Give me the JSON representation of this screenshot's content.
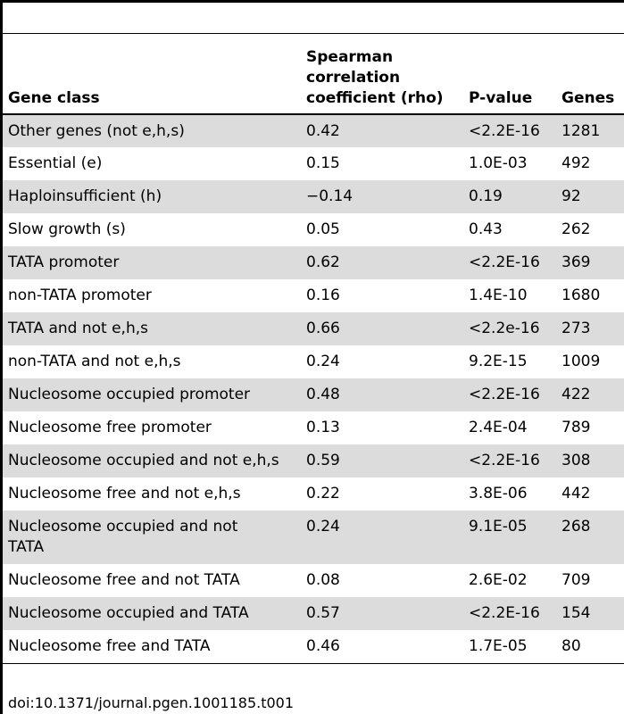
{
  "table": {
    "headers": {
      "gene_class": "Gene class",
      "rho_line1": "Spearman",
      "rho_line2": "correlation",
      "rho_line3": "coefficient (rho)",
      "pvalue": "P-value",
      "genes": "Genes"
    },
    "rows": [
      {
        "gene_class": "Other genes (not e,h,s)",
        "rho": "0.42",
        "pvalue": "<2.2E-16",
        "genes": "1281"
      },
      {
        "gene_class": "Essential (e)",
        "rho": "0.15",
        "pvalue": "1.0E-03",
        "genes": "492"
      },
      {
        "gene_class": "Haploinsufficient (h)",
        "rho": "−0.14",
        "pvalue": "0.19",
        "genes": "92"
      },
      {
        "gene_class": "Slow growth (s)",
        "rho": "0.05",
        "pvalue": "0.43",
        "genes": "262"
      },
      {
        "gene_class": "TATA promoter",
        "rho": "0.62",
        "pvalue": "<2.2E-16",
        "genes": "369"
      },
      {
        "gene_class": "non-TATA promoter",
        "rho": "0.16",
        "pvalue": "1.4E-10",
        "genes": "1680"
      },
      {
        "gene_class": "TATA and not e,h,s",
        "rho": "0.66",
        "pvalue": "<2.2e-16",
        "genes": "273"
      },
      {
        "gene_class": "non-TATA and not e,h,s",
        "rho": "0.24",
        "pvalue": "9.2E-15",
        "genes": "1009"
      },
      {
        "gene_class": "Nucleosome occupied promoter",
        "rho": "0.48",
        "pvalue": "<2.2E-16",
        "genes": "422"
      },
      {
        "gene_class": "Nucleosome free promoter",
        "rho": "0.13",
        "pvalue": "2.4E-04",
        "genes": "789"
      },
      {
        "gene_class": "Nucleosome occupied and not e,h,s",
        "rho": "0.59",
        "pvalue": "<2.2E-16",
        "genes": "308"
      },
      {
        "gene_class": "Nucleosome free and not e,h,s",
        "rho": "0.22",
        "pvalue": "3.8E-06",
        "genes": "442"
      },
      {
        "gene_class_line1": "Nucleosome occupied and not",
        "gene_class_line2": "TATA",
        "rho": "0.24",
        "pvalue": "9.1E-05",
        "genes": "268"
      },
      {
        "gene_class": "Nucleosome free and not TATA",
        "rho": "0.08",
        "pvalue": "2.6E-02",
        "genes": "709"
      },
      {
        "gene_class": "Nucleosome occupied and TATA",
        "rho": "0.57",
        "pvalue": "<2.2E-16",
        "genes": "154"
      },
      {
        "gene_class": "Nucleosome free and TATA",
        "rho": "0.46",
        "pvalue": "1.7E-05",
        "genes": "80"
      }
    ]
  },
  "doi": "doi:10.1371/journal.pgen.1001185.t001"
}
